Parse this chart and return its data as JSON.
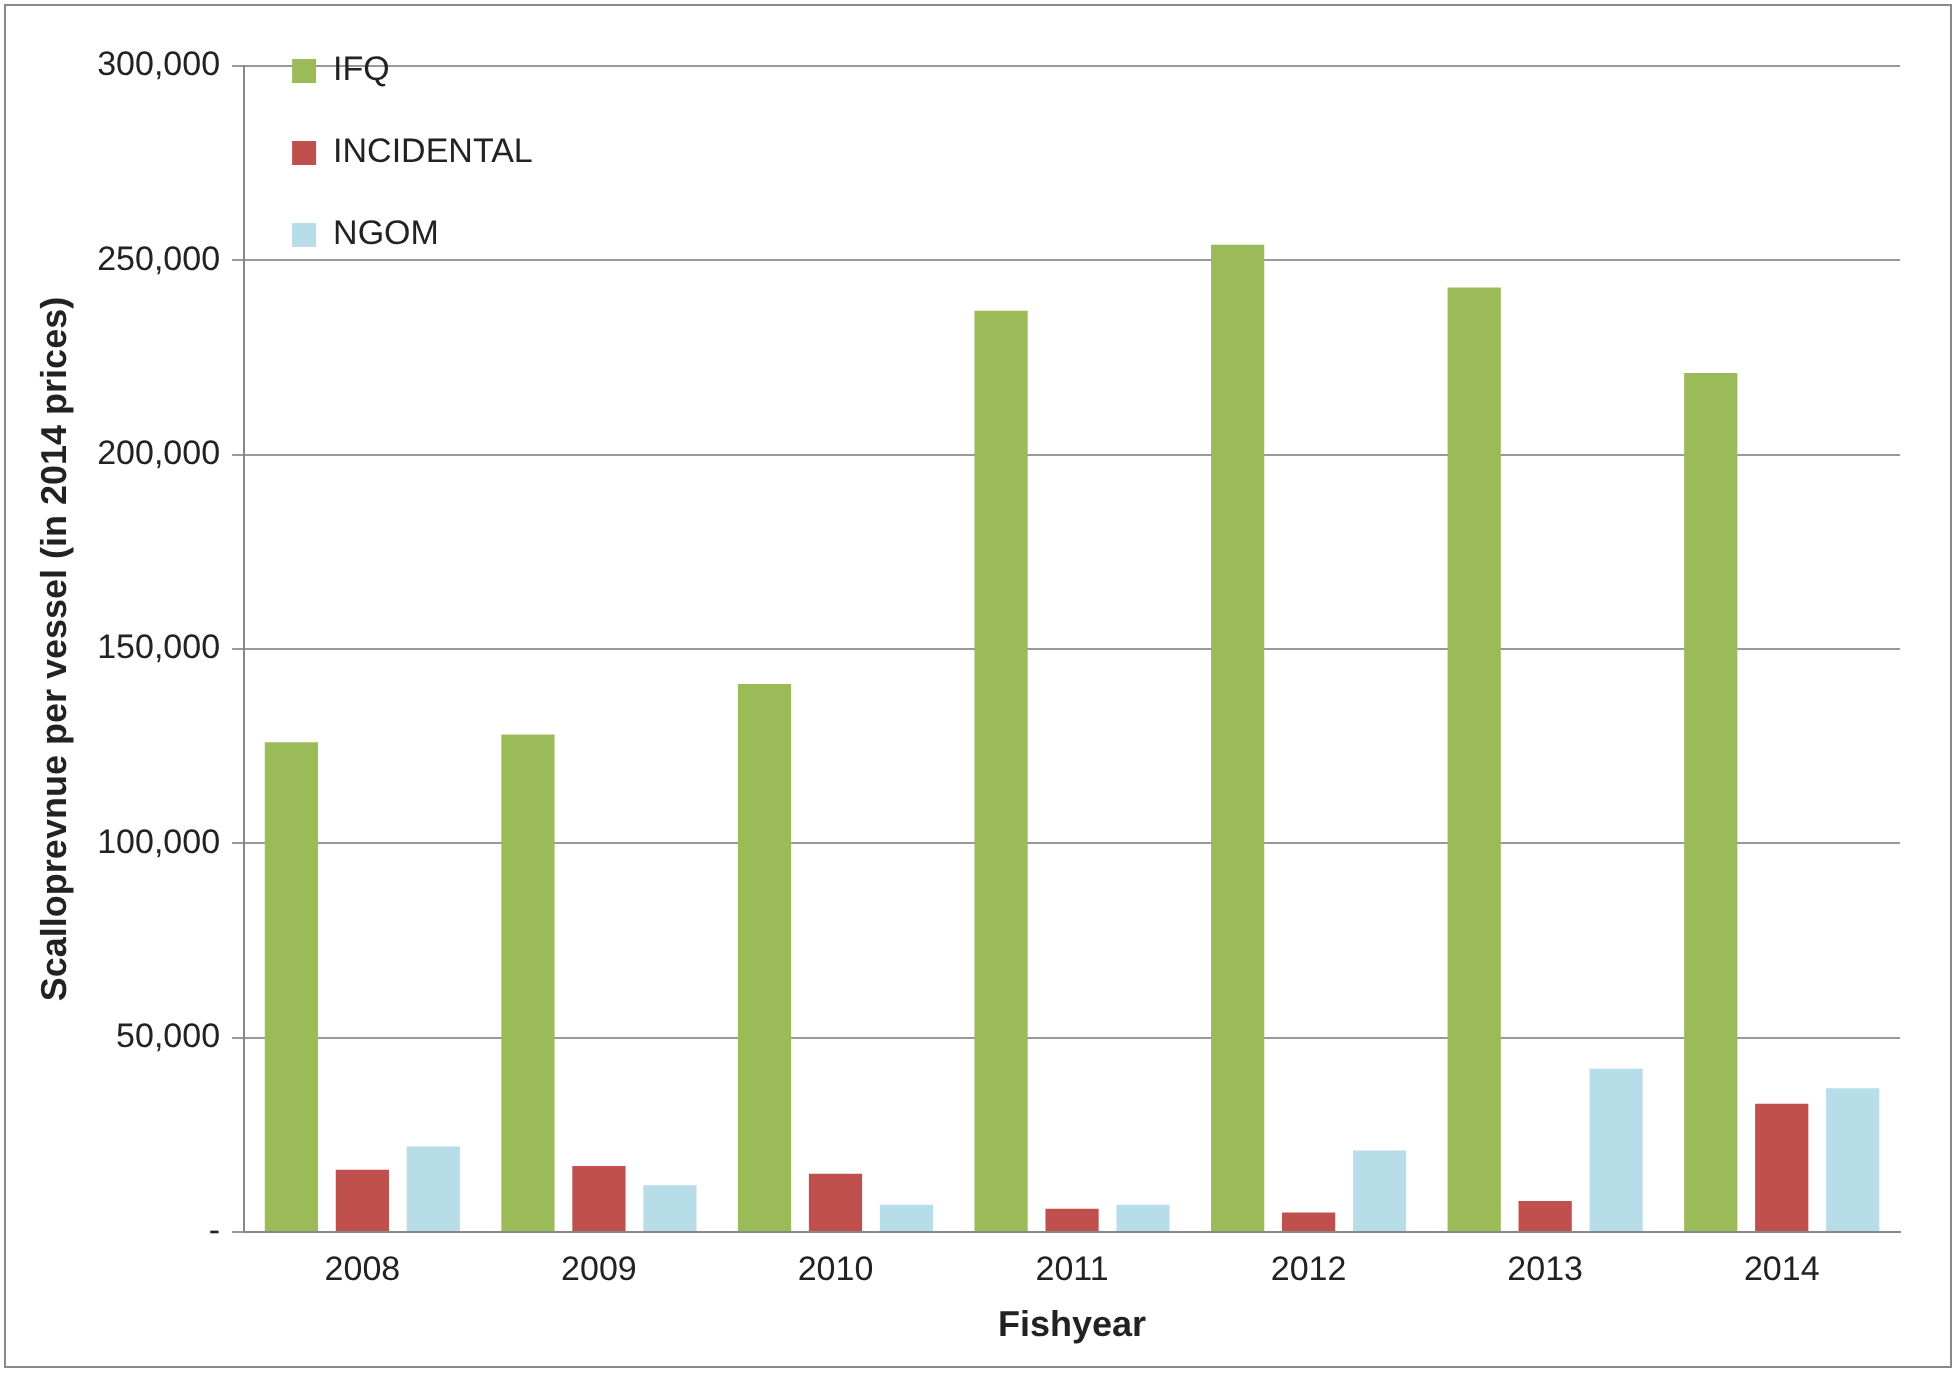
{
  "chart_data": {
    "type": "bar",
    "xlabel": "Fishyear",
    "ylabel": "Scalloprevnue per vessel (in 2014 prices)",
    "categories": [
      "2008",
      "2009",
      "2010",
      "2011",
      "2012",
      "2013",
      "2014"
    ],
    "series": [
      {
        "name": "IFQ",
        "color": "#9bbb59",
        "values": [
          126000,
          128000,
          141000,
          237000,
          254000,
          243000,
          221000
        ]
      },
      {
        "name": "INCIDENTAL",
        "color": "#c0504d",
        "values": [
          16000,
          17000,
          15000,
          6000,
          5000,
          8000,
          33000
        ]
      },
      {
        "name": "NGOM",
        "color": "#b7dee8",
        "values": [
          22000,
          12000,
          7000,
          7000,
          21000,
          42000,
          37000
        ]
      }
    ],
    "ylim": [
      0,
      300000
    ],
    "yticks": [
      {
        "value": 0,
        "label": "-"
      },
      {
        "value": 50000,
        "label": "50,000"
      },
      {
        "value": 100000,
        "label": "100,000"
      },
      {
        "value": 150000,
        "label": "150,000"
      },
      {
        "value": 200000,
        "label": "200,000"
      },
      {
        "value": 250000,
        "label": "250,000"
      },
      {
        "value": 300000,
        "label": "300,000"
      }
    ],
    "grid": "y",
    "legend": "top left"
  }
}
